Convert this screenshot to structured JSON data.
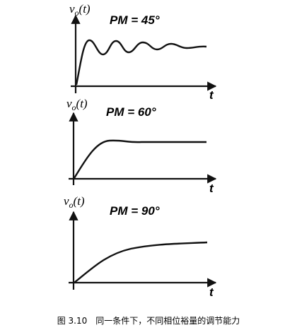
{
  "panels": [
    {
      "y_label": {
        "base": "v",
        "sub": "o",
        "rest": "(t)"
      },
      "pm_label": "PM = 45°",
      "x_label": "t"
    },
    {
      "y_label": {
        "base": "v",
        "sub": "o",
        "rest": "(t)"
      },
      "pm_label": "PM = 60°",
      "x_label": "t"
    },
    {
      "y_label": {
        "base": "v",
        "sub": "o",
        "rest": "(t)"
      },
      "pm_label": "PM = 90°",
      "x_label": "t"
    }
  ],
  "caption": "图 3.10　同一条件下，不同相位裕量的调节能力"
}
